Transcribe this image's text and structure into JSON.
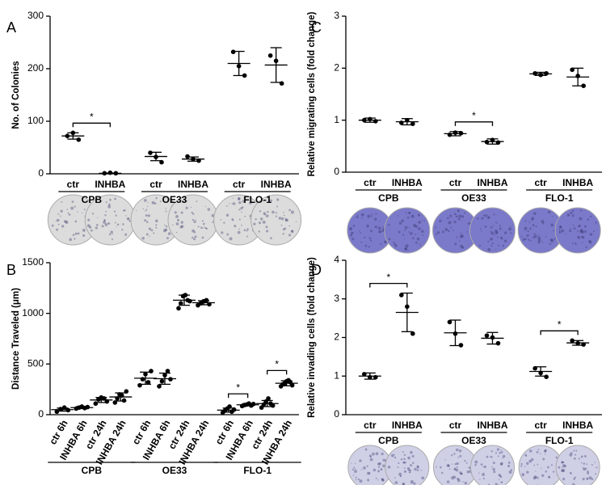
{
  "chart_data": [
    {
      "type": "dot",
      "panel": "A",
      "y_label": "No. of Colonies",
      "ylim": [
        0,
        300
      ],
      "yticks": [
        0,
        100,
        200,
        300
      ],
      "groups": [
        "CPB",
        "OE33",
        "FLO-1"
      ],
      "categories": [
        "ctr",
        "INHBA",
        "ctr",
        "INHBA",
        "ctr",
        "INHBA"
      ],
      "points": [
        [
          72,
          78,
          65
        ],
        [
          1,
          2,
          1
        ],
        [
          40,
          32,
          22
        ],
        [
          33,
          28,
          25
        ],
        [
          232,
          205,
          187
        ],
        [
          225,
          215,
          172
        ]
      ],
      "means": [
        72,
        1,
        33,
        28,
        210,
        207
      ],
      "errors": [
        6,
        0.5,
        8,
        4,
        23,
        33
      ],
      "pair_significance": [
        "*",
        null,
        null
      ],
      "well_color": "#dcdcdc"
    },
    {
      "type": "dot",
      "panel": "B",
      "y_label": "Distance Traveled (μm)",
      "ylim": [
        0,
        1500
      ],
      "yticks": [
        0,
        500,
        1000,
        1500
      ],
      "groups": [
        "CPB",
        "OE33",
        "FLO-1"
      ],
      "categories": [
        "ctr 6h",
        "INHBA 6h",
        "ctr 24h",
        "INHBA 24h",
        "ctr 6h",
        "INHBA 6h",
        "ctr 24h",
        "INHBA 24h",
        "ctr 6h",
        "INHBA 6h",
        "ctr 24h",
        "INHBA 24h"
      ],
      "points": [
        [
          30,
          55,
          70,
          45
        ],
        [
          60,
          70,
          80,
          65,
          75
        ],
        [
          110,
          150,
          170,
          160,
          130
        ],
        [
          120,
          160,
          200,
          190,
          140,
          230
        ],
        [
          290,
          350,
          400,
          320,
          430
        ],
        [
          280,
          330,
          390,
          430,
          350
        ],
        [
          1050,
          1100,
          1170,
          1180,
          1130,
          1120
        ],
        [
          1080,
          1100,
          1120,
          1130,
          1090
        ],
        [
          20,
          40,
          60,
          80,
          30,
          50
        ],
        [
          85,
          95,
          100,
          110,
          90,
          105
        ],
        [
          70,
          100,
          130,
          160,
          110,
          90
        ],
        [
          280,
          300,
          310,
          330,
          340,
          320,
          290
        ]
      ],
      "means": [
        50,
        70,
        145,
        175,
        360,
        355,
        1130,
        1105,
        45,
        98,
        110,
        310
      ],
      "errors": [
        15,
        10,
        25,
        40,
        60,
        55,
        50,
        20,
        20,
        10,
        30,
        25
      ],
      "pair_significance": [
        null,
        null,
        null,
        null,
        "*",
        "*"
      ]
    },
    {
      "type": "dot",
      "panel": "C",
      "y_label": "Relative migrating cells (fold change)",
      "ylim": [
        0,
        3
      ],
      "yticks": [
        0,
        1,
        2,
        3
      ],
      "groups": [
        "CPB",
        "OE33",
        "FLO-1"
      ],
      "categories": [
        "ctr",
        "INHBA",
        "ctr",
        "INHBA",
        "ctr",
        "INHBA"
      ],
      "points": [
        [
          1.0,
          1.02,
          0.98
        ],
        [
          0.95,
          1.0,
          0.93
        ],
        [
          0.72,
          0.76,
          0.75
        ],
        [
          0.58,
          0.62,
          0.57
        ],
        [
          1.9,
          1.87,
          1.9
        ],
        [
          1.97,
          1.85,
          1.66
        ]
      ],
      "means": [
        1.0,
        0.97,
        0.74,
        0.59,
        1.89,
        1.83
      ],
      "errors": [
        0.04,
        0.06,
        0.04,
        0.05,
        0.03,
        0.17
      ],
      "pair_significance": [
        null,
        "*",
        null
      ],
      "well_color": "#7b79c9"
    },
    {
      "type": "dot",
      "panel": "D",
      "y_label": "Relative invading cells (fold change)",
      "ylim": [
        0,
        4
      ],
      "yticks": [
        0,
        1,
        2,
        3,
        4
      ],
      "groups": [
        "CPB",
        "OE33",
        "FLO-1"
      ],
      "categories": [
        "ctr",
        "INHBA",
        "ctr",
        "INHBA",
        "ctr",
        "INHBA"
      ],
      "points": [
        [
          1.05,
          0.97,
          0.97
        ],
        [
          3.1,
          2.8,
          2.1
        ],
        [
          2.4,
          2.1,
          1.8
        ],
        [
          2.05,
          2.0,
          1.85
        ],
        [
          1.2,
          1.08,
          0.98
        ],
        [
          1.92,
          1.85,
          1.82
        ]
      ],
      "means": [
        1.0,
        2.65,
        2.12,
        1.98,
        1.12,
        1.86
      ],
      "errors": [
        0.08,
        0.5,
        0.33,
        0.15,
        0.12,
        0.06
      ],
      "pair_significance": [
        "*",
        null,
        "*"
      ],
      "well_color": "#cfcfe6"
    }
  ]
}
